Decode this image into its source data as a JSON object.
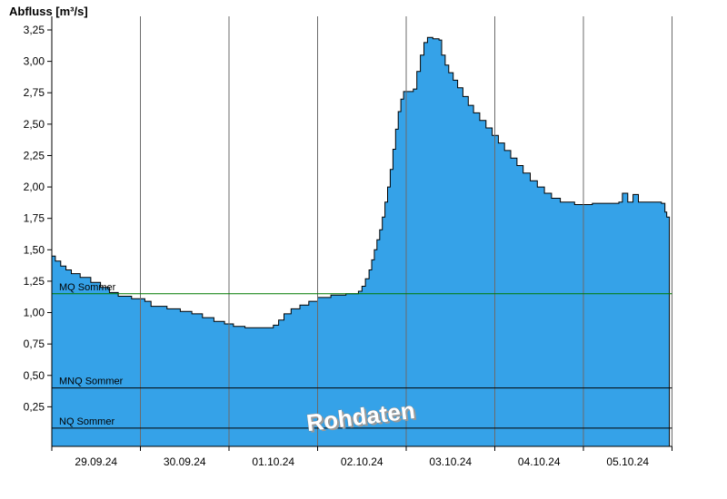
{
  "chart_data": {
    "type": "area",
    "title": "Abfluss [m³/s]",
    "watermark": "Rohdaten",
    "ylim": [
      0,
      3.3
    ],
    "x_axis": {
      "unit": "days",
      "day_labels": [
        {
          "label": "29.09.24",
          "t": 0.5
        },
        {
          "label": "30.09.24",
          "t": 1.5
        },
        {
          "label": "01.10.24",
          "t": 2.5
        },
        {
          "label": "02.10.24",
          "t": 3.5
        },
        {
          "label": "03.10.24",
          "t": 4.5
        },
        {
          "label": "04.10.24",
          "t": 5.5
        },
        {
          "label": "05.10.24",
          "t": 6.5
        }
      ],
      "gridlines_t": [
        1,
        2,
        3,
        4,
        5,
        6,
        7
      ]
    },
    "y_axis": {
      "ticks": [
        {
          "value": 0.25,
          "label": "0,25"
        },
        {
          "value": 0.5,
          "label": "0,50"
        },
        {
          "value": 0.75,
          "label": "0,75"
        },
        {
          "value": 1.0,
          "label": "1,00"
        },
        {
          "value": 1.25,
          "label": "1,25"
        },
        {
          "value": 1.5,
          "label": "1,50"
        },
        {
          "value": 1.75,
          "label": "1,75"
        },
        {
          "value": 2.0,
          "label": "2,00"
        },
        {
          "value": 2.25,
          "label": "2,25"
        },
        {
          "value": 2.5,
          "label": "2,50"
        },
        {
          "value": 2.75,
          "label": "2,75"
        },
        {
          "value": 3.0,
          "label": "3,00"
        },
        {
          "value": 3.25,
          "label": "3,25"
        }
      ]
    },
    "reference_lines": [
      {
        "label": "MQ Sommer",
        "value": 1.15,
        "color": "#007a00"
      },
      {
        "label": "MNQ Sommer",
        "value": 0.4,
        "color": "#000000"
      },
      {
        "label": "NQ Sommer",
        "value": 0.08,
        "color": "#000000"
      }
    ],
    "series": [
      {
        "name": "Rohdaten",
        "fill_color": "#35a2e8",
        "stroke_color": "#000000",
        "points": [
          [
            0.0,
            1.45
          ],
          [
            0.04,
            1.41
          ],
          [
            0.1,
            1.37
          ],
          [
            0.16,
            1.34
          ],
          [
            0.22,
            1.31
          ],
          [
            0.32,
            1.28
          ],
          [
            0.44,
            1.24
          ],
          [
            0.55,
            1.2
          ],
          [
            0.65,
            1.16
          ],
          [
            0.75,
            1.13
          ],
          [
            0.9,
            1.11
          ],
          [
            1.05,
            1.09
          ],
          [
            1.12,
            1.05
          ],
          [
            1.3,
            1.03
          ],
          [
            1.45,
            1.01
          ],
          [
            1.58,
            0.99
          ],
          [
            1.7,
            0.96
          ],
          [
            1.83,
            0.93
          ],
          [
            1.95,
            0.91
          ],
          [
            2.05,
            0.89
          ],
          [
            2.18,
            0.88
          ],
          [
            2.45,
            0.88
          ],
          [
            2.5,
            0.9
          ],
          [
            2.56,
            0.94
          ],
          [
            2.62,
            0.99
          ],
          [
            2.7,
            1.03
          ],
          [
            2.8,
            1.06
          ],
          [
            2.9,
            1.09
          ],
          [
            3.0,
            1.12
          ],
          [
            3.15,
            1.14
          ],
          [
            3.32,
            1.15
          ],
          [
            3.46,
            1.17
          ],
          [
            3.5,
            1.21
          ],
          [
            3.54,
            1.27
          ],
          [
            3.58,
            1.34
          ],
          [
            3.61,
            1.42
          ],
          [
            3.64,
            1.5
          ],
          [
            3.67,
            1.58
          ],
          [
            3.7,
            1.66
          ],
          [
            3.73,
            1.76
          ],
          [
            3.76,
            1.88
          ],
          [
            3.79,
            2.0
          ],
          [
            3.82,
            2.14
          ],
          [
            3.85,
            2.3
          ],
          [
            3.88,
            2.46
          ],
          [
            3.91,
            2.6
          ],
          [
            3.94,
            2.7
          ],
          [
            3.97,
            2.76
          ],
          [
            4.08,
            2.78
          ],
          [
            4.12,
            2.92
          ],
          [
            4.16,
            3.05
          ],
          [
            4.2,
            3.15
          ],
          [
            4.24,
            3.19
          ],
          [
            4.3,
            3.18
          ],
          [
            4.37,
            3.17
          ],
          [
            4.4,
            3.05
          ],
          [
            4.44,
            2.97
          ],
          [
            4.48,
            2.91
          ],
          [
            4.53,
            2.85
          ],
          [
            4.58,
            2.79
          ],
          [
            4.64,
            2.72
          ],
          [
            4.7,
            2.65
          ],
          [
            4.76,
            2.59
          ],
          [
            4.83,
            2.53
          ],
          [
            4.9,
            2.47
          ],
          [
            4.97,
            2.41
          ],
          [
            5.04,
            2.35
          ],
          [
            5.11,
            2.29
          ],
          [
            5.18,
            2.23
          ],
          [
            5.25,
            2.17
          ],
          [
            5.32,
            2.11
          ],
          [
            5.4,
            2.05
          ],
          [
            5.48,
            2.0
          ],
          [
            5.56,
            1.95
          ],
          [
            5.64,
            1.91
          ],
          [
            5.74,
            1.88
          ],
          [
            5.9,
            1.86
          ],
          [
            6.1,
            1.87
          ],
          [
            6.4,
            1.88
          ],
          [
            6.44,
            1.95
          ],
          [
            6.5,
            1.88
          ],
          [
            6.56,
            1.94
          ],
          [
            6.62,
            1.88
          ],
          [
            6.88,
            1.87
          ],
          [
            6.92,
            1.8
          ],
          [
            6.94,
            1.76
          ]
        ],
        "t_end": 6.97
      }
    ]
  }
}
